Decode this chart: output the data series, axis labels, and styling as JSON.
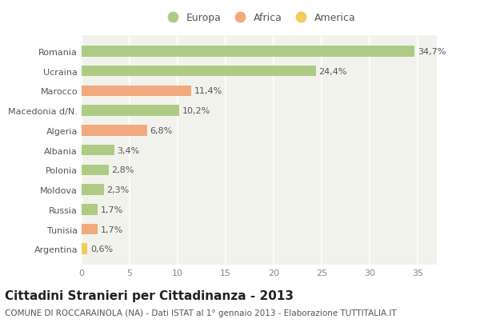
{
  "countries": [
    "Romania",
    "Ucraina",
    "Marocco",
    "Macedonia d/N.",
    "Algeria",
    "Albania",
    "Polonia",
    "Moldova",
    "Russia",
    "Tunisia",
    "Argentina"
  ],
  "values": [
    34.7,
    24.4,
    11.4,
    10.2,
    6.8,
    3.4,
    2.8,
    2.3,
    1.7,
    1.7,
    0.6
  ],
  "labels": [
    "34,7%",
    "24,4%",
    "11,4%",
    "10,2%",
    "6,8%",
    "3,4%",
    "2,8%",
    "2,3%",
    "1,7%",
    "1,7%",
    "0,6%"
  ],
  "continents": [
    "Europa",
    "Europa",
    "Africa",
    "Europa",
    "Africa",
    "Europa",
    "Europa",
    "Europa",
    "Europa",
    "Africa",
    "America"
  ],
  "colors": {
    "Europa": "#aecb85",
    "Africa": "#f2a97e",
    "America": "#f0cc5a"
  },
  "title": "Cittadini Stranieri per Cittadinanza - 2013",
  "subtitle": "COMUNE DI ROCCARAINOLA (NA) - Dati ISTAT al 1° gennaio 2013 - Elaborazione TUTTITALIA.IT",
  "xlim": [
    0,
    37
  ],
  "xticks": [
    0,
    5,
    10,
    15,
    20,
    25,
    30,
    35
  ],
  "background_color": "#ffffff",
  "plot_bg_color": "#f2f2ed",
  "bar_height": 0.55,
  "title_fontsize": 11,
  "subtitle_fontsize": 7.5,
  "label_fontsize": 8,
  "tick_fontsize": 8,
  "legend_fontsize": 9
}
